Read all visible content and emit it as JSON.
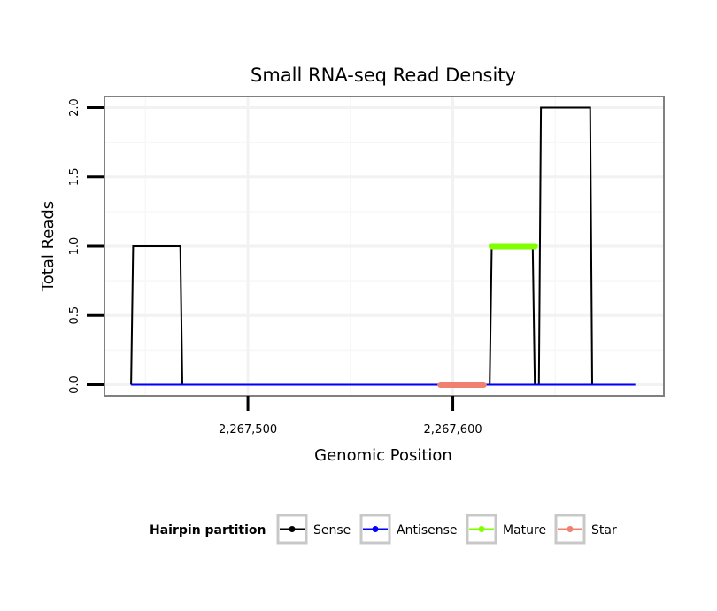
{
  "chart_data": {
    "type": "line",
    "title": "Small RNA-seq Read Density",
    "xlabel": "Genomic Position",
    "ylabel": "Total Reads",
    "xlim": [
      2267430,
      2267703
    ],
    "ylim": [
      -0.08,
      2.08
    ],
    "x_ticks": [
      2267500,
      2267600
    ],
    "x_tick_labels": [
      "2,267,500",
      "2,267,600"
    ],
    "y_ticks": [
      0,
      0.5,
      1,
      1.5,
      2
    ],
    "y_tick_labels": [
      "0.0",
      "0.5",
      "1.0",
      "1.5",
      "2.0"
    ],
    "grid": true,
    "series": [
      {
        "name": "Sense",
        "color": "#000000",
        "x": [
          2267443,
          2267444,
          2267467,
          2267468,
          2267618,
          2267619,
          2267639,
          2267640,
          2267642,
          2267643,
          2267667,
          2267668,
          2267689
        ],
        "y": [
          0,
          1,
          1,
          0,
          0,
          1,
          1,
          0,
          0,
          2,
          2,
          0,
          0
        ]
      },
      {
        "name": "Antisense",
        "color": "#0000ff",
        "x": [
          2267443,
          2267689
        ],
        "y": [
          0,
          0
        ]
      },
      {
        "name": "Mature",
        "color": "#7fff00",
        "x": [
          2267619,
          2267640
        ],
        "y": [
          1,
          1
        ]
      },
      {
        "name": "Star",
        "color": "#f08070",
        "x": [
          2267594,
          2267615
        ],
        "y": [
          0,
          0
        ]
      }
    ],
    "legend": {
      "title": "Hairpin partition",
      "position": "bottom",
      "items": [
        "Sense",
        "Antisense",
        "Mature",
        "Star"
      ]
    }
  }
}
